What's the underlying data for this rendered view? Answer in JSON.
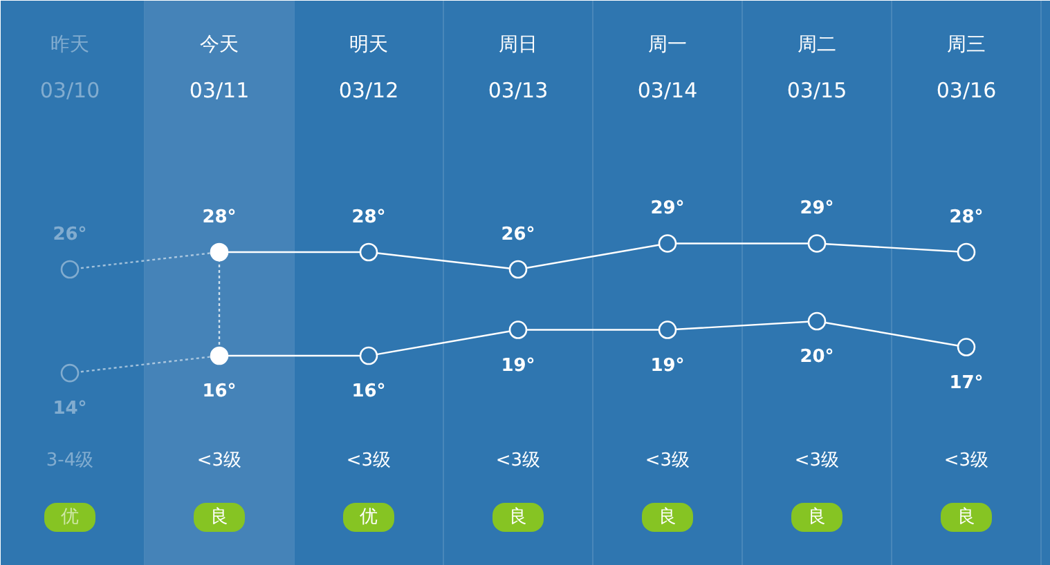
{
  "chart_data": {
    "type": "line",
    "categories": [
      "昨天\n03/10",
      "今天\n03/11",
      "明天\n03/12",
      "周日\n03/13",
      "周一\n03/14",
      "周二\n03/15",
      "周三\n03/16"
    ],
    "series": [
      {
        "color": "#ffffff",
        "values": [
          26,
          28,
          28,
          26,
          29,
          29,
          28
        ],
        "value_labels": [
          "26°",
          "28°",
          "28°",
          "26°",
          "29°",
          "29°",
          "28°"
        ]
      },
      {
        "color": "#ffffff",
        "values": [
          14,
          16,
          16,
          19,
          19,
          20,
          17
        ],
        "value_labels": [
          "14°",
          "16°",
          "16°",
          "19°",
          "19°",
          "20°",
          "17°"
        ]
      }
    ],
    "ylim": [
      -8.3,
      57.1
    ],
    "marker": "circle",
    "grid": "x",
    "bands": [
      {
        "axis": "x",
        "from": "今天\n03/11",
        "to": "今天\n03/11",
        "color": "#4583b8"
      }
    ],
    "ref_lines": [
      {
        "axis": "x",
        "value": "今天\n03/11",
        "label": null,
        "color": "#ffffff",
        "line_style": "dotted"
      }
    ],
    "annotations": [
      "3-4级",
      "<3级",
      "<3级",
      "<3级",
      "<3级",
      "<3级",
      "<3级",
      "优",
      "良",
      "优",
      "良",
      "良",
      "良",
      "良"
    ]
  }
}
